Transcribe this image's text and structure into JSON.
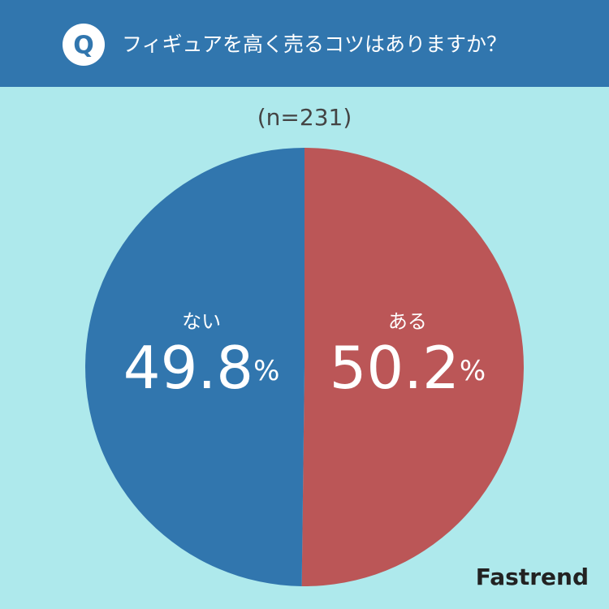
{
  "chart_data": {
    "type": "pie",
    "title": "フィギュアを高く売るコツはありますか？",
    "subtitle": "(n=231)",
    "categories": [
      "ある",
      "ない"
    ],
    "values": [
      50.2,
      49.8
    ],
    "value_labels": [
      "50.2%",
      "49.8%"
    ],
    "colors": [
      "#bb5657",
      "#3176ae"
    ]
  },
  "header": {
    "badge": "Q"
  },
  "footer": {
    "brand": "Fastrend"
  }
}
